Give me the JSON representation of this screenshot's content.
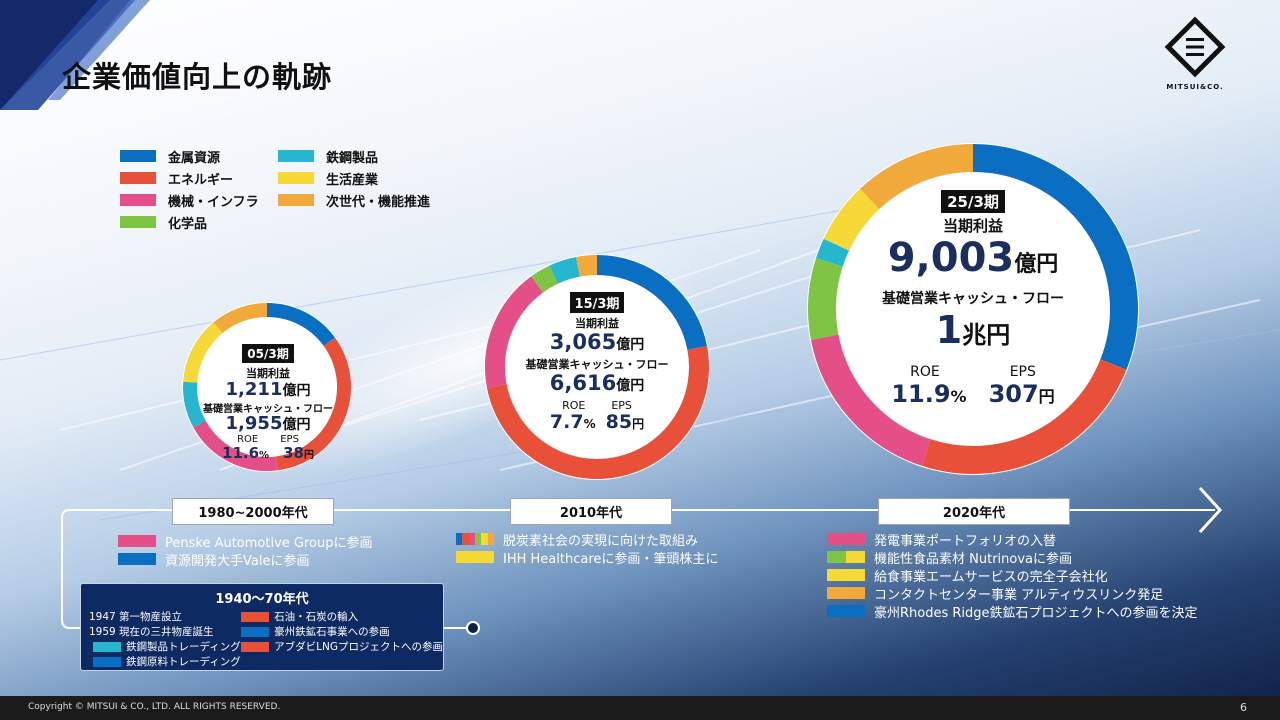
{
  "title": "企業価値向上の軌跡",
  "logo": "MITSUI&CO.",
  "colors": {
    "metals": "#0a6fc2",
    "energy": "#e8503a",
    "machinery": "#e44f88",
    "chemicals": "#7fc443",
    "steel": "#26b7cf",
    "lifestyle": "#f6d836",
    "next_gen": "#f2a93b",
    "navy": "#1a2e5f"
  },
  "legend": [
    {
      "label": "金属資源",
      "color": "#0a6fc2"
    },
    {
      "label": "エネルギー",
      "color": "#e8503a"
    },
    {
      "label": "機械・インフラ",
      "color": "#e44f88"
    },
    {
      "label": "化学品",
      "color": "#7fc443"
    },
    {
      "label": "鉄鋼製品",
      "color": "#26b7cf"
    },
    {
      "label": "生活産業",
      "color": "#f6d836"
    },
    {
      "label": "次世代・機能推進",
      "color": "#f2a93b"
    }
  ],
  "chart_data": [
    {
      "type": "pie",
      "title": "05/3期",
      "categories": [
        "金属資源",
        "エネルギー",
        "機械・インフラ",
        "鉄鋼製品",
        "生活産業",
        "次世代・機能推進"
      ],
      "values": [
        15,
        33,
        19,
        9,
        13,
        11
      ],
      "net_income_label": "当期利益",
      "net_income": "1,211",
      "net_income_unit": "億円",
      "cf_label": "基礎営業キャッシュ・フロー",
      "cf": "1,955",
      "cf_unit": "億円",
      "roe_label": "ROE",
      "roe": "11.6",
      "roe_unit": "%",
      "eps_label": "EPS",
      "eps": "38",
      "eps_unit": "円"
    },
    {
      "type": "pie",
      "title": "15/3期",
      "categories": [
        "金属資源",
        "エネルギー",
        "機械・インフラ",
        "化学品",
        "鉄鋼製品",
        "次世代・機能推進"
      ],
      "values": [
        22,
        50,
        18,
        3,
        4,
        3
      ],
      "net_income_label": "当期利益",
      "net_income": "3,065",
      "net_income_unit": "億円",
      "cf_label": "基礎営業キャッシュ・フロー",
      "cf": "6,616",
      "cf_unit": "億円",
      "roe_label": "ROE",
      "roe": "7.7",
      "roe_unit": "%",
      "eps_label": "EPS",
      "eps": "85",
      "eps_unit": "円"
    },
    {
      "type": "pie",
      "title": "25/3期",
      "categories": [
        "金属資源",
        "エネルギー",
        "機械・インフラ",
        "化学品",
        "鉄鋼製品",
        "生活産業",
        "次世代・機能推進"
      ],
      "values": [
        31,
        24,
        17,
        8,
        2,
        6,
        12
      ],
      "net_income_label": "当期利益",
      "net_income": "9,003",
      "net_income_unit": "億円",
      "cf_label": "基礎営業キャッシュ・フロー",
      "cf": "1",
      "cf_unit": "兆円",
      "roe_label": "ROE",
      "roe": "11.9",
      "roe_unit": "%",
      "eps_label": "EPS",
      "eps": "307",
      "eps_unit": "円"
    }
  ],
  "timeline": {
    "eras": [
      "1980~2000年代",
      "2010年代",
      "2020年代"
    ],
    "era_1980": [
      {
        "text": "Penske Automotive Groupに参画",
        "colors": [
          "#e44f88"
        ]
      },
      {
        "text": "資源開発大手Valeに参画",
        "colors": [
          "#0a6fc2"
        ]
      }
    ],
    "era_2010": [
      {
        "text": "脱炭素社会の実現に向けた取組み",
        "colors": [
          "#0a6fc2",
          "#e8503a",
          "#e44f88",
          "#7fc443",
          "#f6d836",
          "#f2a93b"
        ]
      },
      {
        "text": "IHH Healthcareに参画・筆頭株主に",
        "colors": [
          "#f6d836"
        ]
      }
    ],
    "era_2020": [
      {
        "text": "発電事業ポートフォリオの入替",
        "colors": [
          "#e44f88"
        ]
      },
      {
        "text": "機能性食品素材 Nutrinovaに参画",
        "colors": [
          "#7fc443",
          "#f6d836"
        ]
      },
      {
        "text": "給食事業エームサービスの完全子会社化",
        "colors": [
          "#f6d836"
        ]
      },
      {
        "text": "コンタクトセンター事業 アルティウスリンク発足",
        "colors": [
          "#f2a93b"
        ]
      },
      {
        "text": "豪州Rhodes Ridge鉄鉱石プロジェクトへの参画を決定",
        "colors": [
          "#0a6fc2"
        ]
      }
    ],
    "era_1940": {
      "title": "1940～70年代",
      "left": [
        "1947 第一物産設立",
        "1959 現在の三井物産誕生"
      ],
      "left_events": [
        {
          "text": "鉄鋼製品トレーディング",
          "colors": [
            "#26b7cf"
          ]
        },
        {
          "text": "鉄鋼原料トレーディング",
          "colors": [
            "#0a6fc2"
          ]
        }
      ],
      "right_events": [
        {
          "text": "石油・石炭の輸入",
          "colors": [
            "#e8503a"
          ]
        },
        {
          "text": "豪州鉄鉱石事業への参画",
          "colors": [
            "#0a6fc2"
          ]
        },
        {
          "text": "アブダビLNGプロジェクトへの参画",
          "colors": [
            "#e8503a"
          ]
        }
      ]
    }
  },
  "footer": {
    "copyright": "Copyright © MITSUI & CO., LTD. ALL RIGHTS RESERVED.",
    "page": "6"
  }
}
